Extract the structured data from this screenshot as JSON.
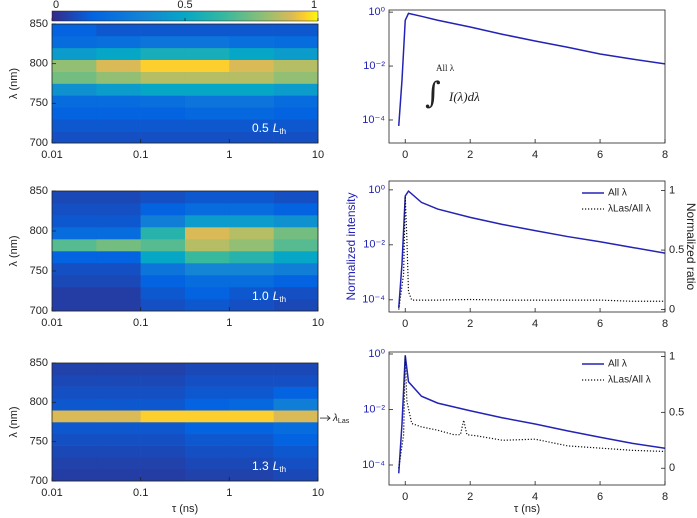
{
  "chart_data": [
    {
      "type": "heatmap",
      "ylabel": "λ (nm)",
      "log_x": true,
      "xlim": [
        0.01,
        10
      ],
      "ylim": [
        700,
        850
      ],
      "xticks": [
        0.01,
        0.1,
        1,
        10
      ],
      "yticks": [
        700,
        750,
        800,
        850
      ],
      "zlim": [
        0,
        1
      ],
      "colorbar_ticks": [
        0,
        0.5,
        1
      ],
      "x_bins": [
        0.01,
        0.0316,
        0.1,
        0.316,
        1,
        3.16,
        10
      ],
      "y_bins": [
        700,
        715,
        730,
        745,
        760,
        775,
        790,
        805,
        820,
        835,
        850
      ],
      "values": [
        [
          0.1,
          0.1,
          0.1,
          0.1,
          0.1,
          0.1
        ],
        [
          0.12,
          0.12,
          0.12,
          0.12,
          0.12,
          0.12
        ],
        [
          0.15,
          0.15,
          0.15,
          0.18,
          0.18,
          0.15
        ],
        [
          0.2,
          0.2,
          0.22,
          0.25,
          0.25,
          0.2
        ],
        [
          0.4,
          0.45,
          0.5,
          0.5,
          0.5,
          0.45
        ],
        [
          0.75,
          0.8,
          0.85,
          0.85,
          0.85,
          0.8
        ],
        [
          0.8,
          0.9,
          0.95,
          0.95,
          0.9,
          0.85
        ],
        [
          0.45,
          0.5,
          0.55,
          0.55,
          0.5,
          0.45
        ],
        [
          0.2,
          0.22,
          0.25,
          0.25,
          0.22,
          0.2
        ],
        [
          0.15,
          0.12,
          0.12,
          0.12,
          0.12,
          0.12
        ]
      ],
      "annotation": {
        "value": "0.5",
        "symbol": "L",
        "sub": "th"
      }
    },
    {
      "type": "heatmap",
      "ylabel": "λ (nm)",
      "log_x": true,
      "xlim": [
        0.01,
        10
      ],
      "ylim": [
        700,
        850
      ],
      "xticks": [
        0.01,
        0.1,
        1,
        10
      ],
      "yticks": [
        700,
        750,
        800,
        850
      ],
      "zlim": [
        0,
        1
      ],
      "x_bins": [
        0.01,
        0.0316,
        0.1,
        0.316,
        1,
        3.16,
        10
      ],
      "y_bins": [
        700,
        715,
        730,
        745,
        760,
        775,
        790,
        805,
        820,
        835,
        850
      ],
      "values": [
        [
          0.05,
          0.05,
          0.1,
          0.12,
          0.1,
          0.08
        ],
        [
          0.05,
          0.05,
          0.12,
          0.15,
          0.12,
          0.1
        ],
        [
          0.08,
          0.08,
          0.15,
          0.2,
          0.2,
          0.15
        ],
        [
          0.1,
          0.1,
          0.25,
          0.35,
          0.35,
          0.3
        ],
        [
          0.15,
          0.15,
          0.5,
          0.65,
          0.6,
          0.5
        ],
        [
          0.7,
          0.75,
          0.7,
          0.85,
          0.8,
          0.7
        ],
        [
          0.2,
          0.2,
          0.6,
          0.9,
          0.85,
          0.75
        ],
        [
          0.12,
          0.12,
          0.3,
          0.45,
          0.45,
          0.4
        ],
        [
          0.1,
          0.1,
          0.15,
          0.2,
          0.2,
          0.15
        ],
        [
          0.08,
          0.08,
          0.1,
          0.12,
          0.12,
          0.1
        ]
      ],
      "annotation": {
        "value": "1.0",
        "symbol": "L",
        "sub": "th"
      }
    },
    {
      "type": "heatmap",
      "ylabel": "λ (nm)",
      "xlabel": "τ (ns)",
      "log_x": true,
      "xlim": [
        0.01,
        10
      ],
      "ylim": [
        700,
        850
      ],
      "xticks": [
        0.01,
        0.1,
        1,
        10
      ],
      "yticks": [
        700,
        750,
        800,
        850
      ],
      "zlim": [
        0,
        1
      ],
      "x_bins": [
        0.01,
        0.0316,
        0.1,
        0.316,
        1,
        3.16,
        10
      ],
      "y_bins": [
        700,
        715,
        730,
        745,
        760,
        775,
        790,
        805,
        820,
        835,
        850
      ],
      "values": [
        [
          0.05,
          0.05,
          0.05,
          0.06,
          0.06,
          0.08
        ],
        [
          0.06,
          0.06,
          0.06,
          0.08,
          0.08,
          0.1
        ],
        [
          0.08,
          0.08,
          0.08,
          0.1,
          0.1,
          0.12
        ],
        [
          0.1,
          0.1,
          0.1,
          0.12,
          0.12,
          0.15
        ],
        [
          0.12,
          0.12,
          0.12,
          0.15,
          0.15,
          0.2
        ],
        [
          0.9,
          0.9,
          0.95,
          0.95,
          0.95,
          0.9
        ],
        [
          0.12,
          0.12,
          0.12,
          0.15,
          0.18,
          0.3
        ],
        [
          0.1,
          0.1,
          0.1,
          0.12,
          0.12,
          0.15
        ],
        [
          0.08,
          0.08,
          0.08,
          0.1,
          0.1,
          0.1
        ],
        [
          0.06,
          0.06,
          0.06,
          0.08,
          0.08,
          0.08
        ]
      ],
      "annotation": {
        "value": "1.3",
        "symbol": "L",
        "sub": "th"
      },
      "lasing": {
        "wavelength": 780,
        "symbol": "λ",
        "sub": "Las"
      }
    },
    {
      "type": "line",
      "log_y": true,
      "xlim": [
        -0.5,
        8
      ],
      "xticks": [
        0,
        2,
        4,
        6,
        8
      ],
      "ylim": [
        1.4e-05,
        1.2
      ],
      "yticks": [
        {
          "value": 0.0001,
          "label": "10⁻⁴"
        },
        {
          "value": 0.01,
          "label": "10⁻²"
        },
        {
          "value": 1,
          "label": "10⁰"
        }
      ],
      "series": [
        {
          "color": "#2323b5",
          "x": [
            -0.2,
            -0.1,
            0,
            0.1,
            0.5,
            1,
            2,
            3,
            4,
            5,
            6,
            7,
            8
          ],
          "values": [
            6e-05,
            0.003,
            0.5,
            0.9,
            0.7,
            0.5,
            0.28,
            0.15,
            0.085,
            0.05,
            0.028,
            0.018,
            0.012
          ]
        }
      ],
      "annotation": {
        "integral": "∫",
        "limit": "All λ",
        "integrand": "I(λ)dλ"
      }
    },
    {
      "type": "line",
      "log_y": true,
      "ylabel": "Normalized intensity",
      "y2label": "Normalized ratio",
      "xlim": [
        -0.5,
        8
      ],
      "xticks": [
        0,
        2,
        4,
        6,
        8
      ],
      "ylim": [
        3.6e-05,
        2.1
      ],
      "yticks": [
        {
          "value": 0.0001,
          "label": "10⁻⁴"
        },
        {
          "value": 0.01,
          "label": "10⁻²"
        },
        {
          "value": 1,
          "label": "10⁰"
        }
      ],
      "y2lim": [
        -0.02,
        1.08
      ],
      "y2ticks": [
        0,
        0.5,
        1
      ],
      "series": [
        {
          "name": "All λ",
          "color": "#2323b5",
          "x": [
            -0.2,
            -0.1,
            0,
            0.1,
            0.5,
            1,
            2,
            3,
            4,
            5,
            6,
            7,
            8
          ],
          "values": [
            5e-05,
            0.002,
            0.6,
            0.9,
            0.35,
            0.2,
            0.1,
            0.055,
            0.033,
            0.02,
            0.013,
            0.008,
            0.005
          ]
        },
        {
          "name": "λLas/All λ",
          "color": "#111111",
          "axis": "y2",
          "style": "dotted",
          "x": [
            -0.2,
            -0.05,
            0,
            0.05,
            0.1,
            0.2,
            0.5,
            1,
            2,
            3,
            4,
            5,
            6,
            7,
            8
          ],
          "values": [
            0,
            0.3,
            0.95,
            0.6,
            0.15,
            0.08,
            0.08,
            0.08,
            0.085,
            0.08,
            0.08,
            0.08,
            0.08,
            0.07,
            0.07
          ]
        }
      ]
    },
    {
      "type": "line",
      "log_y": true,
      "xlabel": "τ (ns)",
      "xlim": [
        -0.5,
        8
      ],
      "xticks": [
        0,
        2,
        4,
        6,
        8
      ],
      "ylim": [
        1.9e-05,
        1.18
      ],
      "yticks": [
        {
          "value": 0.0001,
          "label": "10⁻⁴"
        },
        {
          "value": 0.01,
          "label": "10⁻²"
        },
        {
          "value": 1,
          "label": "10⁰"
        }
      ],
      "y2lim": [
        -0.15,
        1.04
      ],
      "y2ticks": [
        0,
        0.5,
        1
      ],
      "series": [
        {
          "name": "All λ",
          "color": "#2323b5",
          "x": [
            -0.2,
            -0.1,
            0,
            0.1,
            0.5,
            1,
            2,
            3,
            4,
            5,
            6,
            7,
            8
          ],
          "values": [
            5e-05,
            0.003,
            0.9,
            0.1,
            0.03,
            0.017,
            0.009,
            0.005,
            0.003,
            0.0017,
            0.001,
            0.0006,
            0.0004
          ]
        },
        {
          "name": "λLas/All λ",
          "color": "#111111",
          "axis": "y2",
          "style": "dotted",
          "x": [
            -0.2,
            -0.05,
            0,
            0.05,
            0.2,
            0.5,
            1,
            1.5,
            1.7,
            1.8,
            1.9,
            2.2,
            3,
            4,
            5,
            6,
            7,
            8
          ],
          "values": [
            0,
            0.3,
            1,
            0.6,
            0.4,
            0.37,
            0.34,
            0.3,
            0.3,
            0.43,
            0.3,
            0.29,
            0.25,
            0.26,
            0.2,
            0.18,
            0.16,
            0.15
          ]
        }
      ]
    }
  ]
}
